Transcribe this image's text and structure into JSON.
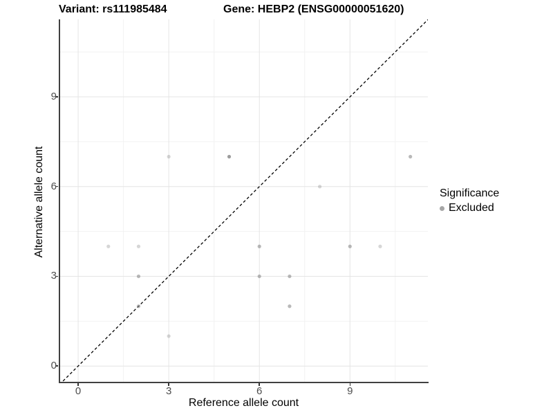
{
  "title": {
    "variant": "Variant: rs111985484",
    "gene": "Gene: HEBP2 (ENSG00000051620)"
  },
  "chart_data": {
    "type": "scatter",
    "title": "Variant: rs111985484   Gene: HEBP2 (ENSG00000051620)",
    "xlabel": "Reference allele count",
    "ylabel": "Alternative allele count",
    "xlim": [
      -0.62,
      11.58
    ],
    "ylim": [
      -0.55,
      11.59
    ],
    "x_ticks": [
      0,
      3,
      6,
      9
    ],
    "y_ticks": [
      0,
      3,
      6,
      9
    ],
    "x_minor_ticks": [
      1.5,
      4.5,
      7.5,
      10.5
    ],
    "y_minor_ticks": [
      1.5,
      4.5,
      7.5,
      10.5
    ],
    "grid": true,
    "identity_line": {
      "style": "dashed",
      "slope": 1,
      "intercept": 0
    },
    "series": [
      {
        "name": "Excluded",
        "points": [
          {
            "x": 1,
            "y": 4,
            "shade": "light"
          },
          {
            "x": 2,
            "y": 4,
            "shade": "light"
          },
          {
            "x": 2,
            "y": 3,
            "shade": "medium"
          },
          {
            "x": 2,
            "y": 2,
            "shade": "medium"
          },
          {
            "x": 3,
            "y": 1,
            "shade": "light"
          },
          {
            "x": 3,
            "y": 7,
            "shade": "light"
          },
          {
            "x": 5,
            "y": 7,
            "shade": "dark"
          },
          {
            "x": 6,
            "y": 4,
            "shade": "medium"
          },
          {
            "x": 6,
            "y": 3,
            "shade": "medium"
          },
          {
            "x": 7,
            "y": 3,
            "shade": "medium"
          },
          {
            "x": 7,
            "y": 2,
            "shade": "medium"
          },
          {
            "x": 8,
            "y": 6,
            "shade": "light"
          },
          {
            "x": 9,
            "y": 4,
            "shade": "medium"
          },
          {
            "x": 10,
            "y": 4,
            "shade": "light"
          },
          {
            "x": 11,
            "y": 7,
            "shade": "medium"
          }
        ]
      }
    ],
    "legend": {
      "title": "Significance",
      "position": "right",
      "entries": [
        {
          "label": "Excluded",
          "color": "#a6a6a6"
        }
      ]
    }
  },
  "colors": {
    "background": "#ffffff",
    "grid_major": "#e4e4e4",
    "grid_minor": "#f2f2f2",
    "axis_line": "#404040",
    "tick_mark": "#333333",
    "tick_label": "#4d4d4d",
    "point_base": "#808080",
    "identity_line": "#000000",
    "shade_opacity": {
      "light": 0.32,
      "medium": 0.55,
      "dark": 0.78
    }
  }
}
